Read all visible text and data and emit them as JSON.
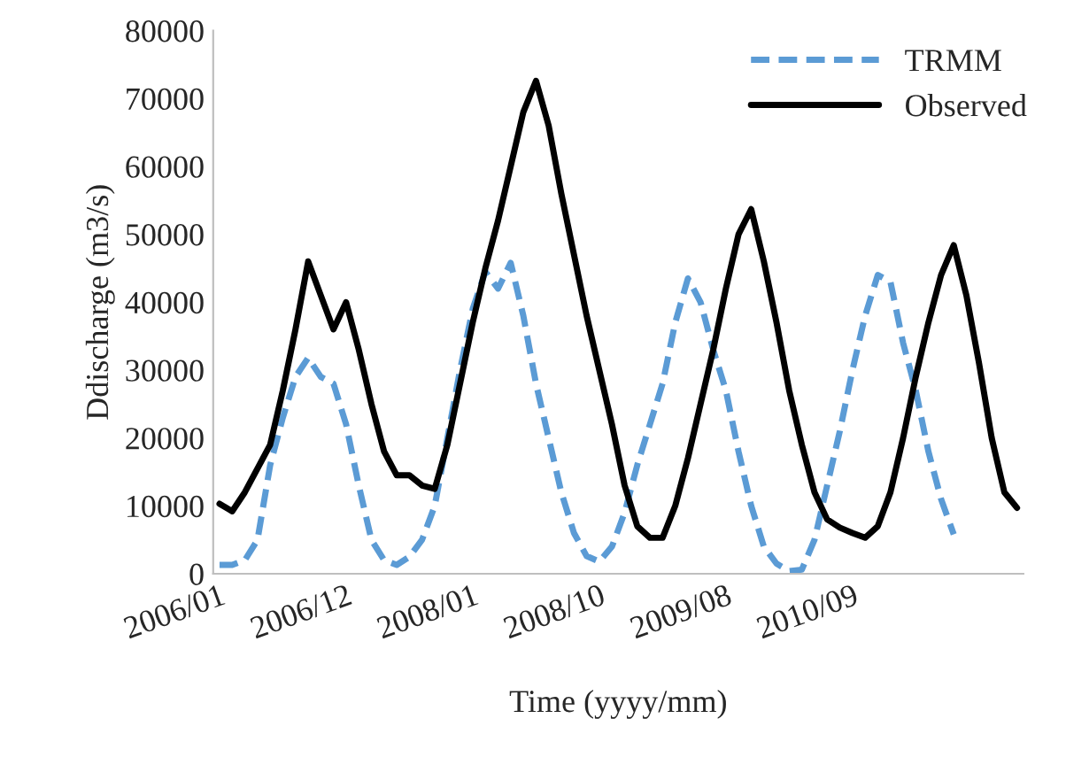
{
  "chart_data": {
    "type": "line",
    "xlabel": "Time (yyyy/mm)",
    "ylabel": "Ddischarge (m3/s)",
    "categories": [
      "2006/01",
      null,
      null,
      null,
      null,
      null,
      null,
      null,
      null,
      null,
      "2006/12",
      null,
      null,
      null,
      null,
      null,
      null,
      null,
      null,
      null,
      "2008/01",
      null,
      null,
      null,
      null,
      null,
      null,
      null,
      null,
      null,
      "2008/10",
      null,
      null,
      null,
      null,
      null,
      null,
      null,
      null,
      null,
      "2009/08",
      null,
      null,
      null,
      null,
      null,
      null,
      null,
      null,
      null,
      "2010/09",
      null,
      null,
      null,
      null,
      null,
      null,
      null,
      null,
      null,
      null,
      null,
      null,
      null
    ],
    "series": [
      {
        "name": "TRMM",
        "color": "#5b9bd5",
        "line_style": "dashed",
        "values": [
          1300,
          1300,
          2000,
          5000,
          16000,
          23000,
          29000,
          31800,
          29000,
          28000,
          22000,
          13000,
          5000,
          2000,
          1300,
          2500,
          5000,
          10000,
          20000,
          30000,
          39000,
          44500,
          42000,
          45800,
          38000,
          28000,
          20000,
          12000,
          6000,
          2600,
          1800,
          4000,
          9000,
          16000,
          22000,
          28000,
          37000,
          43500,
          40000,
          33000,
          27000,
          18000,
          10000,
          4000,
          1500,
          400,
          600,
          5000,
          13000,
          21000,
          30000,
          38000,
          44000,
          43000,
          34000,
          27000,
          18000,
          11000,
          5800,
          null,
          null,
          null,
          null,
          null
        ]
      },
      {
        "name": "Observed",
        "color": "#000000",
        "line_style": "solid",
        "values": [
          10300,
          9200,
          12000,
          15500,
          19000,
          27000,
          36000,
          46000,
          41000,
          36000,
          40000,
          33000,
          25000,
          18000,
          14500,
          14500,
          13000,
          12500,
          19000,
          28000,
          37000,
          45000,
          52000,
          60000,
          68000,
          72600,
          66000,
          56000,
          47000,
          38000,
          30000,
          22000,
          13000,
          7000,
          5300,
          5300,
          10000,
          17000,
          25000,
          33000,
          42000,
          50000,
          53700,
          46000,
          37000,
          27000,
          19000,
          12000,
          8000,
          6800,
          6000,
          5300,
          7000,
          12000,
          20000,
          29000,
          37000,
          44000,
          48400,
          41000,
          31000,
          20000,
          12000,
          9700
        ]
      }
    ],
    "ylim": [
      0,
      80000
    ],
    "yticks": [
      0,
      10000,
      20000,
      30000,
      40000,
      50000,
      60000,
      70000,
      80000
    ],
    "grid": false,
    "legend": "top right",
    "marker": "none"
  }
}
